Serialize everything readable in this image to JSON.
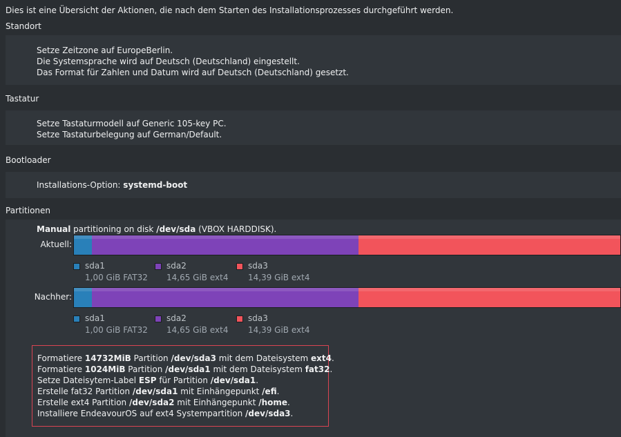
{
  "intro": "Dies ist eine Übersicht der Aktionen, die nach dem Starten des Installationsprozesses durchgeführt werden.",
  "sections": {
    "location": {
      "title": "Standort",
      "lines": [
        "Setze Zeitzone auf EuropeBerlin.",
        "Die Systemsprache wird auf Deutsch (Deutschland) eingestellt.",
        "Das Format für Zahlen und Datum wird auf Deutsch (Deutschland) gesetzt."
      ]
    },
    "keyboard": {
      "title": "Tastatur",
      "lines": [
        "Setze Tastaturmodell auf Generic 105-key PC.",
        "Setze Tastaturbelegung auf German/Default."
      ]
    },
    "bootloader": {
      "title": "Bootloader",
      "label": "Installations-Option: ",
      "value": "systemd-boot"
    },
    "partitions": {
      "title": "Partitionen",
      "heading": {
        "mode": "Manual",
        "text1": " partitioning on disk ",
        "disk": "/dev/sda",
        "text2": " (VBOX HARDDISK)."
      },
      "current_label": "Aktuell:",
      "after_label": "Nachher:",
      "partitions": [
        {
          "name": "sda1",
          "size": "1,00 GiB FAT32",
          "size_gib": 1.0,
          "color": "#2980b9"
        },
        {
          "name": "sda2",
          "size": "14,65 GiB ext4",
          "size_gib": 14.65,
          "color": "#7e43b8"
        },
        {
          "name": "sda3",
          "size": "14,39 GiB ext4",
          "size_gib": 14.39,
          "color": "#f2545b"
        }
      ],
      "operations": [
        [
          {
            "t": "Formatiere "
          },
          {
            "t": "14732MiB",
            "b": true
          },
          {
            "t": " Partition "
          },
          {
            "t": "/dev/sda3",
            "b": true
          },
          {
            "t": " mit dem Dateisystem "
          },
          {
            "t": "ext4",
            "b": true
          },
          {
            "t": "."
          }
        ],
        [
          {
            "t": "Formatiere "
          },
          {
            "t": "1024MiB",
            "b": true
          },
          {
            "t": " Partition "
          },
          {
            "t": "/dev/sda1",
            "b": true
          },
          {
            "t": " mit dem Dateisystem "
          },
          {
            "t": "fat32",
            "b": true
          },
          {
            "t": "."
          }
        ],
        [
          {
            "t": "Setze Dateisytem-Label "
          },
          {
            "t": "ESP",
            "b": true
          },
          {
            "t": " für Partition "
          },
          {
            "t": "/dev/sda1",
            "b": true
          },
          {
            "t": "."
          }
        ],
        [
          {
            "t": "Erstelle fat32 Partition "
          },
          {
            "t": "/dev/sda1",
            "b": true
          },
          {
            "t": " mit Einhängepunkt "
          },
          {
            "t": "/efi",
            "b": true
          },
          {
            "t": "."
          }
        ],
        [
          {
            "t": "Erstelle ext4 Partition "
          },
          {
            "t": "/dev/sda2",
            "b": true
          },
          {
            "t": " mit Einhängepunkt "
          },
          {
            "t": "/home",
            "b": true
          },
          {
            "t": "."
          }
        ],
        [
          {
            "t": "Installiere EndeavourOS auf ext4 Systempartition "
          },
          {
            "t": "/dev/sda3",
            "b": true
          },
          {
            "t": "."
          }
        ]
      ]
    }
  },
  "colors": {
    "background": "#2a2e32",
    "panel": "#31363b",
    "text": "#eff0f1",
    "ops_border": "#da4453"
  }
}
